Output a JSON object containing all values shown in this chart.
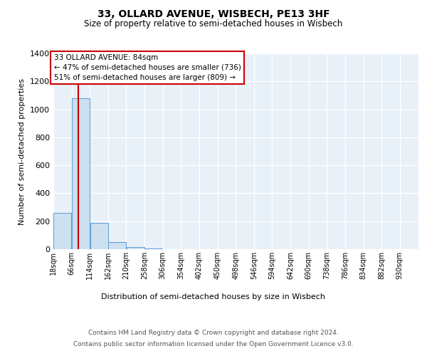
{
  "title": "33, OLLARD AVENUE, WISBECH, PE13 3HF",
  "subtitle": "Size of property relative to semi-detached houses in Wisbech",
  "xlabel_bottom": "Distribution of semi-detached houses by size in Wisbech",
  "ylabel": "Number of semi-detached properties",
  "footer_line1": "Contains HM Land Registry data © Crown copyright and database right 2024.",
  "footer_line2": "Contains public sector information licensed under the Open Government Licence v3.0.",
  "bin_edges": [
    18,
    66,
    114,
    162,
    210,
    258,
    306,
    354,
    402,
    450,
    498,
    546,
    594,
    642,
    690,
    738,
    786,
    834,
    882,
    930,
    979
  ],
  "bar_heights": [
    260,
    1080,
    190,
    50,
    15,
    5,
    0,
    0,
    0,
    0,
    0,
    0,
    0,
    0,
    0,
    0,
    0,
    0,
    0,
    0
  ],
  "bar_color": "#cce0f0",
  "bar_edge_color": "#5b9bd5",
  "background_color": "#e8f0f8",
  "grid_color": "#ffffff",
  "red_line_x": 84,
  "annotation_text": "33 OLLARD AVENUE: 84sqm\n← 47% of semi-detached houses are smaller (736)\n51% of semi-detached houses are larger (809) →",
  "annotation_box_color": "#ffffff",
  "annotation_box_edge": "#cc0000",
  "ylim": [
    0,
    1400
  ],
  "yticks": [
    0,
    200,
    400,
    600,
    800,
    1000,
    1200,
    1400
  ]
}
